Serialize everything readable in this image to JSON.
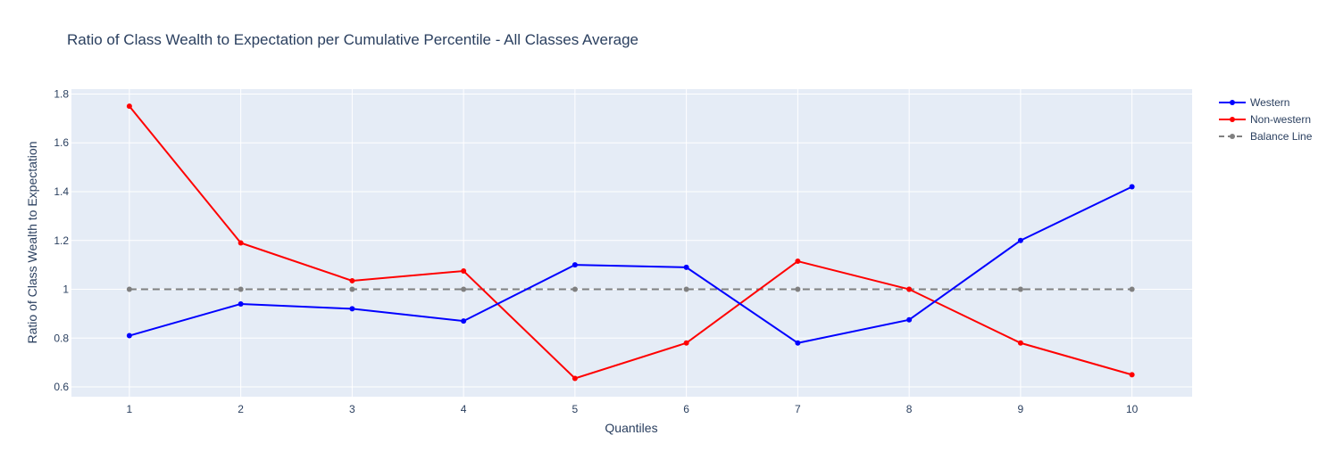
{
  "chart_data": {
    "type": "line",
    "title": "Ratio of Class Wealth to Expectation per Cumulative Percentile - All Classes Average",
    "xlabel": "Quantiles",
    "ylabel": "Ratio of Class Wealth to Expectation",
    "x": [
      1,
      2,
      3,
      4,
      5,
      6,
      7,
      8,
      9,
      10
    ],
    "x_tick_labels": [
      "1",
      "2",
      "3",
      "4",
      "5",
      "6",
      "7",
      "8",
      "9",
      "10"
    ],
    "xlim": [
      0.48,
      10.54
    ],
    "ylim": [
      0.56,
      1.82
    ],
    "y_ticks": [
      0.6,
      0.8,
      1,
      1.2,
      1.4,
      1.6,
      1.8
    ],
    "y_tick_labels": [
      "0.6",
      "0.8",
      "1",
      "1.2",
      "1.4",
      "1.6",
      "1.8"
    ],
    "grid": true,
    "legend_position": "top-right",
    "plot_background": "#e5ecf6",
    "series": [
      {
        "name": "Western",
        "color": "#0000ff",
        "dash": "solid",
        "values": [
          0.81,
          0.94,
          0.92,
          0.87,
          1.1,
          1.09,
          0.78,
          0.875,
          1.2,
          1.42
        ]
      },
      {
        "name": "Non-western",
        "color": "#ff0000",
        "dash": "solid",
        "values": [
          1.75,
          1.19,
          1.035,
          1.075,
          0.635,
          0.78,
          1.115,
          1.0,
          0.78,
          0.65
        ]
      },
      {
        "name": "Balance Line",
        "color": "#808080",
        "dash": "dash",
        "values": [
          1,
          1,
          1,
          1,
          1,
          1,
          1,
          1,
          1,
          1
        ]
      }
    ]
  }
}
